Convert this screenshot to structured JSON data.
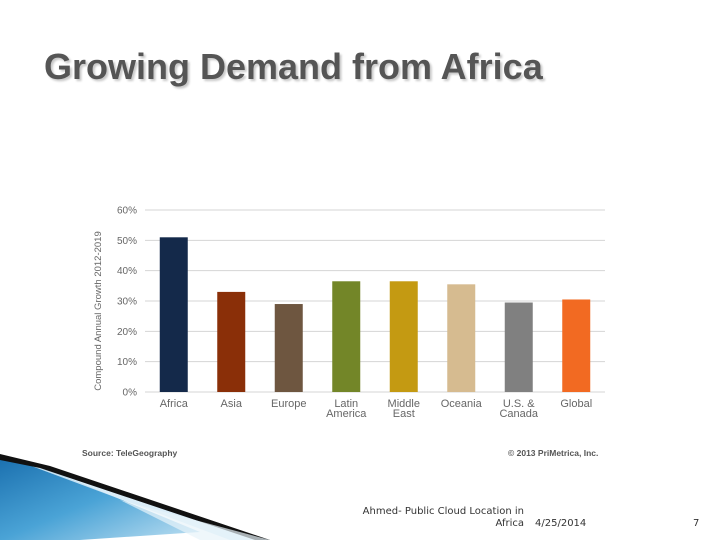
{
  "slide": {
    "title": "Growing Demand from Africa",
    "source": "Source: TeleGeography",
    "copyright": "© 2013 PriMetrica, Inc.",
    "footer_left": "Ahmed- Public Cloud Location in Africa",
    "footer_date": "4/25/2014",
    "page_number": "7"
  },
  "chart_data": {
    "type": "bar",
    "title": "",
    "xlabel": "",
    "ylabel": "Compound Annual Growth 2012-2019",
    "ylim": [
      0,
      60
    ],
    "y_ticks": [
      "0%",
      "10%",
      "20%",
      "30%",
      "40%",
      "50%",
      "60%"
    ],
    "y_tick_values": [
      0,
      10,
      20,
      30,
      40,
      50,
      60
    ],
    "grid": true,
    "categories": [
      [
        "Africa"
      ],
      [
        "Asia"
      ],
      [
        "Europe"
      ],
      [
        "Latin",
        "America"
      ],
      [
        "Middle",
        "East"
      ],
      [
        "Oceania"
      ],
      [
        "U.S. &",
        "Canada"
      ],
      [
        "Global"
      ]
    ],
    "values": [
      51,
      33,
      29,
      36.5,
      36.5,
      35.5,
      29.5,
      30.5
    ],
    "colors": [
      "#14294a",
      "#8a2f08",
      "#6e5640",
      "#738628",
      "#c49a12",
      "#d6bb90",
      "#808080",
      "#f26a22"
    ]
  }
}
